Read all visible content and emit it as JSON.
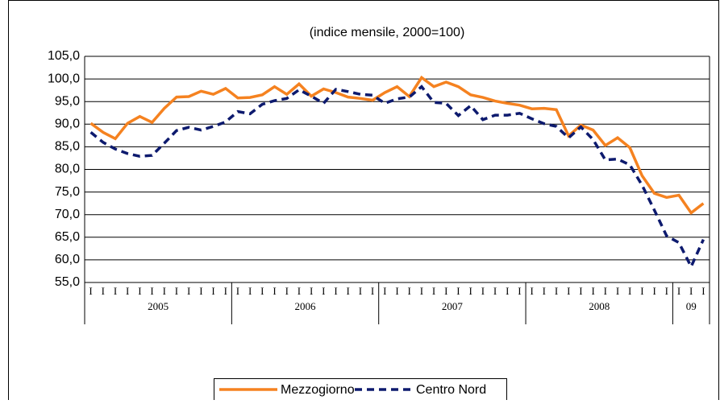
{
  "chart_data": {
    "type": "line",
    "title": "(indice mensile, 2000=100)",
    "categories": [
      "I",
      "I",
      "I",
      "I",
      "I",
      "I",
      "I",
      "I",
      "I",
      "I",
      "I",
      "I",
      "I",
      "I",
      "I",
      "I",
      "I",
      "I",
      "I",
      "I",
      "I",
      "I",
      "I",
      "I",
      "I",
      "I",
      "I",
      "I",
      "I",
      "I",
      "I",
      "I",
      "I",
      "I",
      "I",
      "I",
      "I",
      "I",
      "I",
      "I",
      "I",
      "I",
      "I",
      "I",
      "I",
      "I",
      "I",
      "I",
      "I",
      "I",
      "I"
    ],
    "year_groups": [
      {
        "label": "2005",
        "months": 12
      },
      {
        "label": "2006",
        "months": 12
      },
      {
        "label": "2007",
        "months": 12
      },
      {
        "label": "2008",
        "months": 12
      },
      {
        "label": "09",
        "months": 3
      }
    ],
    "series": [
      {
        "name": "Mezzogiorno",
        "color": "#f58220",
        "dashed": false,
        "values": [
          90.2,
          88.2,
          86.8,
          90.2,
          91.7,
          90.4,
          93.5,
          96.0,
          96.1,
          97.3,
          96.6,
          97.9,
          95.8,
          95.9,
          96.5,
          98.3,
          96.6,
          98.9,
          96.2,
          97.8,
          97.0,
          96.0,
          95.7,
          95.3,
          97.0,
          98.3,
          96.1,
          100.3,
          98.3,
          99.3,
          98.3,
          96.5,
          95.9,
          95.1,
          94.6,
          94.2,
          93.4,
          93.5,
          93.2,
          87.4,
          89.8,
          88.7,
          85.3,
          87.0,
          84.8,
          78.6,
          74.7,
          73.8,
          74.3,
          70.4,
          72.5
        ]
      },
      {
        "name": "Centro Nord",
        "color": "#0d1a6e",
        "dashed": true,
        "values": [
          88.2,
          86.0,
          84.5,
          83.5,
          82.9,
          83.1,
          85.8,
          88.6,
          89.3,
          88.7,
          89.5,
          90.5,
          92.8,
          92.3,
          94.4,
          95.2,
          95.7,
          97.6,
          96.2,
          94.6,
          97.7,
          97.2,
          96.6,
          96.4,
          94.6,
          95.6,
          96.0,
          98.3,
          94.8,
          94.6,
          91.9,
          94.1,
          91.0,
          92.0,
          92.0,
          92.4,
          91.2,
          90.1,
          89.5,
          87.0,
          89.4,
          86.6,
          82.1,
          82.3,
          81.0,
          76.5,
          71.0,
          65.3,
          63.8,
          58.5,
          64.5
        ]
      }
    ],
    "ylim": [
      55,
      105
    ],
    "yticks": [
      {
        "value": 55,
        "label": "55,0"
      },
      {
        "value": 60,
        "label": "60,0"
      },
      {
        "value": 65,
        "label": "65,0"
      },
      {
        "value": 70,
        "label": "70,0"
      },
      {
        "value": 75,
        "label": "75,0"
      },
      {
        "value": 80,
        "label": "80,0"
      },
      {
        "value": 85,
        "label": "85,0"
      },
      {
        "value": 90,
        "label": "90,0"
      },
      {
        "value": 95,
        "label": "95,0"
      },
      {
        "value": 100,
        "label": "100,0"
      },
      {
        "value": 105,
        "label": "105,0"
      }
    ],
    "grid": true,
    "legend": "bottom"
  }
}
